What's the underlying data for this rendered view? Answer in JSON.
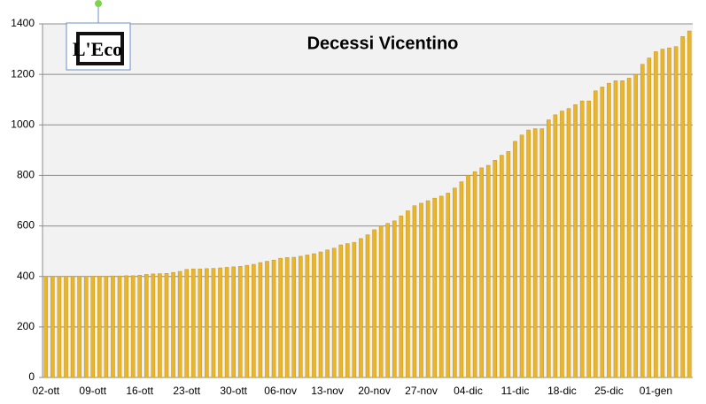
{
  "chart_data": {
    "type": "bar",
    "title": "Decessi Vicentino",
    "logo": "L'Eco",
    "categories": [
      "02-ott",
      null,
      null,
      null,
      null,
      null,
      null,
      "09-ott",
      null,
      null,
      null,
      null,
      null,
      null,
      "16-ott",
      null,
      null,
      null,
      null,
      null,
      null,
      "23-ott",
      null,
      null,
      null,
      null,
      null,
      null,
      "30-ott",
      null,
      null,
      null,
      null,
      null,
      null,
      "06-nov",
      null,
      null,
      null,
      null,
      null,
      null,
      "13-nov",
      null,
      null,
      null,
      null,
      null,
      null,
      "20-nov",
      null,
      null,
      null,
      null,
      null,
      null,
      "27-nov",
      null,
      null,
      null,
      null,
      null,
      null,
      "04-dic",
      null,
      null,
      null,
      null,
      null,
      null,
      "11-dic",
      null,
      null,
      null,
      null,
      null,
      null,
      "18-dic",
      null,
      null,
      null,
      null,
      null,
      null,
      "25-dic",
      null,
      null,
      null,
      null,
      null,
      null,
      "01-gen",
      null,
      null,
      null,
      null,
      null
    ],
    "values": [
      400,
      400,
      400,
      400,
      400,
      400,
      400,
      401,
      401,
      401,
      402,
      402,
      403,
      403,
      405,
      408,
      410,
      411,
      412,
      416,
      420,
      428,
      430,
      430,
      431,
      432,
      434,
      436,
      438,
      440,
      444,
      448,
      455,
      460,
      465,
      472,
      475,
      476,
      480,
      485,
      490,
      497,
      505,
      512,
      525,
      530,
      535,
      550,
      565,
      585,
      600,
      610,
      620,
      640,
      660,
      680,
      690,
      700,
      710,
      718,
      730,
      750,
      775,
      800,
      815,
      830,
      840,
      860,
      880,
      895,
      935,
      960,
      980,
      985,
      985,
      1020,
      1040,
      1055,
      1065,
      1080,
      1095,
      1095,
      1135,
      1150,
      1165,
      1175,
      1175,
      1185,
      1200,
      1240,
      1265,
      1290,
      1300,
      1305,
      1310,
      1350,
      1372
    ],
    "color": "#e8b52c",
    "ylim": [
      0,
      1400
    ],
    "yticks": [
      0,
      200,
      400,
      600,
      800,
      1000,
      1200,
      1400
    ],
    "grid": true
  }
}
